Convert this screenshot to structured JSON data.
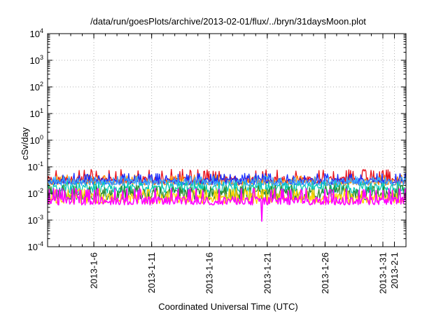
{
  "chart_data": {
    "type": "line",
    "title": "/data/run/goesPlots/archive/2013-02-01/flux/../bryn/31daysMoon.plot",
    "xlabel": "Coordinated Universal Time (UTC)",
    "ylabel": "cSv/day",
    "yscale": "log",
    "ylim": [
      0.0001,
      10000
    ],
    "xlim": [
      "2013-01-02",
      "2013-02-02"
    ],
    "grid": true,
    "y_ticks": [
      {
        "base": "10",
        "exp": "-4",
        "value": 0.0001
      },
      {
        "base": "10",
        "exp": "-3",
        "value": 0.001
      },
      {
        "base": "10",
        "exp": "-2",
        "value": 0.01
      },
      {
        "base": "10",
        "exp": "-1",
        "value": 0.1
      },
      {
        "base": "10",
        "exp": "0",
        "value": 1
      },
      {
        "base": "10",
        "exp": "1",
        "value": 10
      },
      {
        "base": "10",
        "exp": "2",
        "value": 100
      },
      {
        "base": "10",
        "exp": "3",
        "value": 1000
      },
      {
        "base": "10",
        "exp": "4",
        "value": 10000
      }
    ],
    "x_ticks": [
      {
        "label": "2013-1-6",
        "date": "2013-01-06"
      },
      {
        "label": "2013-1-11",
        "date": "2013-01-11"
      },
      {
        "label": "2013-1-16",
        "date": "2013-01-16"
      },
      {
        "label": "2013-1-21",
        "date": "2013-01-21"
      },
      {
        "label": "2013-1-26",
        "date": "2013-01-26"
      },
      {
        "label": "2013-1-31",
        "date": "2013-01-31"
      },
      {
        "label": "2013-2-1",
        "date": "2013-02-01"
      }
    ],
    "series": [
      {
        "color": "#e8101a",
        "typical": 0.035,
        "spread_low": 0.7,
        "spread_high": 2.3
      },
      {
        "color": "#ff8c00",
        "typical": 0.028,
        "spread_low": 0.75,
        "spread_high": 1.8
      },
      {
        "color": "#1a2cff",
        "typical": 0.03,
        "spread_low": 0.75,
        "spread_high": 1.9
      },
      {
        "color": "#3aa8ff",
        "typical": 0.027,
        "spread_low": 0.75,
        "spread_high": 1.7
      },
      {
        "color": "#00c8b4",
        "typical": 0.018,
        "spread_low": 0.6,
        "spread_high": 1.6
      },
      {
        "color": "#2e8b2e",
        "typical": 0.012,
        "spread_low": 0.5,
        "spread_high": 1.7
      },
      {
        "color": "#ffd400",
        "typical": 0.008,
        "spread_low": 0.55,
        "spread_high": 1.9
      },
      {
        "color": "#ff00ff",
        "typical": 0.006,
        "spread_low": 0.65,
        "spread_high": 2.6,
        "min_dip": {
          "date": "2013-01-20",
          "value": 0.0009
        }
      }
    ]
  }
}
